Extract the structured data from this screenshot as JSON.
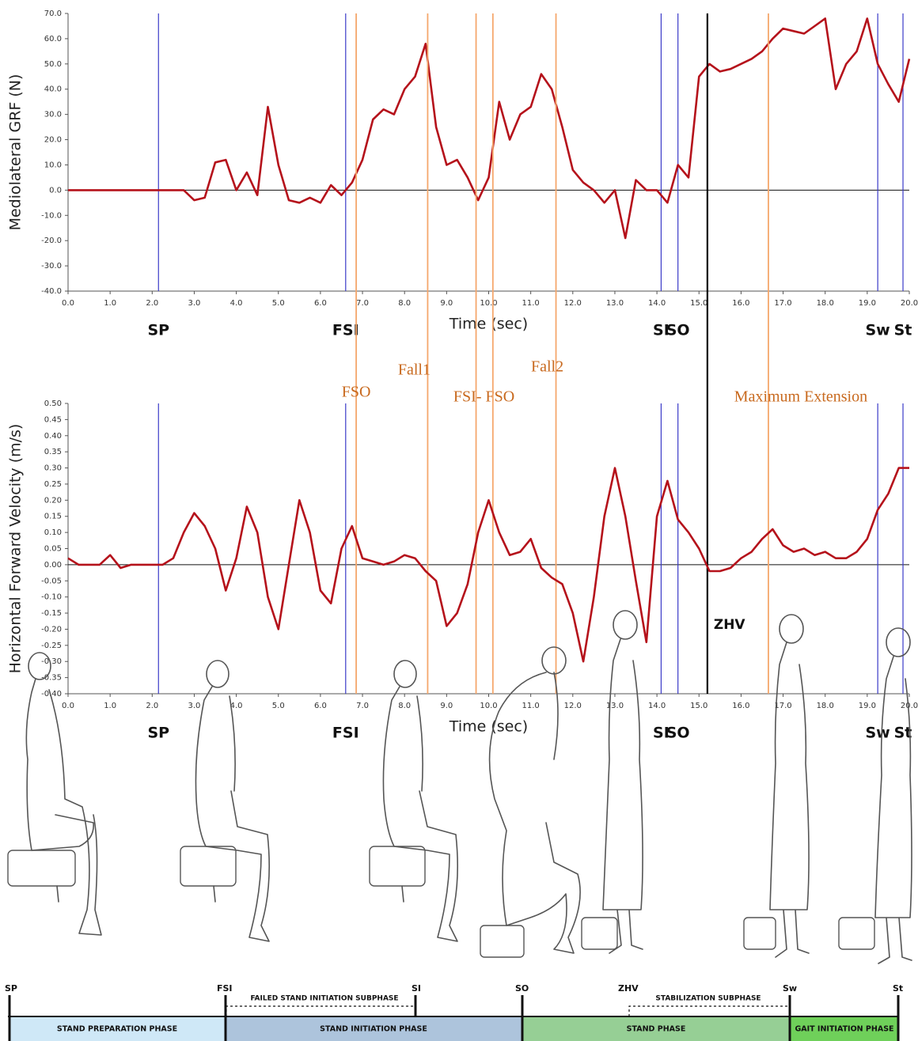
{
  "chart_data": [
    {
      "type": "line",
      "y_label": "Mediolateral GRF (N)",
      "x_label": "Time (sec)",
      "color": "#b5121b",
      "xlim": [
        0,
        20
      ],
      "ylim": [
        -40,
        70
      ],
      "xticks": [
        {
          "value": 0,
          "label": "0.0"
        },
        {
          "value": 1,
          "label": "1.0"
        },
        {
          "value": 2,
          "label": "2.0"
        },
        {
          "value": 3,
          "label": "3.0"
        },
        {
          "value": 4,
          "label": "4.0"
        },
        {
          "value": 5,
          "label": "5.0"
        },
        {
          "value": 6,
          "label": "6.0"
        },
        {
          "value": 7,
          "label": "7.0"
        },
        {
          "value": 8,
          "label": "8.0"
        },
        {
          "value": 9,
          "label": "9.0"
        },
        {
          "value": 10,
          "label": "10.0"
        },
        {
          "value": 11,
          "label": "11.0"
        },
        {
          "value": 12,
          "label": "12.0"
        },
        {
          "value": 13,
          "label": "13.0"
        },
        {
          "value": 14,
          "label": "14.0"
        },
        {
          "value": 15,
          "label": "15.0"
        },
        {
          "value": 16,
          "label": "16.0"
        },
        {
          "value": 17,
          "label": "17.0"
        },
        {
          "value": 18,
          "label": "18.0"
        },
        {
          "value": 19,
          "label": "19.0"
        },
        {
          "value": 20,
          "label": "20.0"
        }
      ],
      "yticks": [
        {
          "value": -40,
          "label": "-40.0"
        },
        {
          "value": -30,
          "label": "-30.0"
        },
        {
          "value": -20,
          "label": "-20.0"
        },
        {
          "value": -10,
          "label": "-10.0"
        },
        {
          "value": 0,
          "label": "0.0"
        },
        {
          "value": 10,
          "label": "10.0"
        },
        {
          "value": 20,
          "label": "20.0"
        },
        {
          "value": 30,
          "label": "30.0"
        },
        {
          "value": 40,
          "label": "40.0"
        },
        {
          "value": 50,
          "label": "50.0"
        },
        {
          "value": 60,
          "label": "60.0"
        },
        {
          "value": 70,
          "label": "70.0"
        }
      ],
      "x": [
        0,
        0.25,
        0.5,
        0.75,
        1,
        1.25,
        1.5,
        1.75,
        2,
        2.25,
        2.5,
        2.75,
        3,
        3.25,
        3.5,
        3.75,
        4,
        4.25,
        4.5,
        4.75,
        5,
        5.25,
        5.5,
        5.75,
        6,
        6.25,
        6.5,
        6.75,
        7,
        7.25,
        7.5,
        7.75,
        8,
        8.25,
        8.5,
        8.75,
        9,
        9.25,
        9.5,
        9.75,
        10,
        10.25,
        10.5,
        10.75,
        11,
        11.25,
        11.5,
        11.75,
        12,
        12.25,
        12.5,
        12.75,
        13,
        13.25,
        13.5,
        13.75,
        14,
        14.25,
        14.5,
        14.75,
        15,
        15.25,
        15.5,
        15.75,
        16,
        16.25,
        16.5,
        16.75,
        17,
        17.25,
        17.5,
        17.75,
        18,
        18.25,
        18.5,
        18.75,
        19,
        19.25,
        19.5,
        19.75,
        20
      ],
      "values": [
        0,
        0,
        0,
        0,
        0,
        0,
        0,
        0,
        0,
        0,
        0,
        0,
        -4,
        -3,
        11,
        12,
        0,
        7,
        -2,
        33,
        10,
        -4,
        -5,
        -3,
        -5,
        2,
        -2,
        3,
        12,
        28,
        32,
        30,
        40,
        45,
        58,
        25,
        10,
        12,
        5,
        -4,
        5,
        35,
        20,
        30,
        33,
        46,
        40,
        25,
        8,
        3,
        0,
        -5,
        0,
        -19,
        4,
        0,
        0,
        -5,
        10,
        5,
        45,
        50,
        47,
        48,
        50,
        52,
        55,
        60,
        64,
        63,
        62,
        65,
        68,
        40,
        50,
        55,
        68,
        50,
        42,
        35,
        52
      ],
      "events": [
        {
          "label": "SP",
          "x": 2.15
        },
        {
          "label": "FSI",
          "x": 6.6
        },
        {
          "label": "SI",
          "x": 14.1
        },
        {
          "label": "SO",
          "x": 14.5
        },
        {
          "label": "Sw",
          "x": 19.25
        },
        {
          "label": "St",
          "x": 19.85
        }
      ]
    },
    {
      "type": "line",
      "y_label": "Horizontal Forward Velocity (m/s)",
      "x_label": "Time (sec)",
      "color": "#b5121b",
      "xlim": [
        0,
        20
      ],
      "ylim": [
        -0.4,
        0.5
      ],
      "xticks": [
        {
          "value": 0,
          "label": "0.0"
        },
        {
          "value": 1,
          "label": "1.0"
        },
        {
          "value": 2,
          "label": "2.0"
        },
        {
          "value": 3,
          "label": "3.0"
        },
        {
          "value": 4,
          "label": "4.0"
        },
        {
          "value": 5,
          "label": "5.0"
        },
        {
          "value": 6,
          "label": "6.0"
        },
        {
          "value": 7,
          "label": "7.0"
        },
        {
          "value": 8,
          "label": "8.0"
        },
        {
          "value": 9,
          "label": "9.0"
        },
        {
          "value": 10,
          "label": "10.0"
        },
        {
          "value": 11,
          "label": "11.0"
        },
        {
          "value": 12,
          "label": "12.0"
        },
        {
          "value": 13,
          "label": "13.0"
        },
        {
          "value": 14,
          "label": "14.0"
        },
        {
          "value": 15,
          "label": "15.0"
        },
        {
          "value": 16,
          "label": "16.0"
        },
        {
          "value": 17,
          "label": "17.0"
        },
        {
          "value": 18,
          "label": "18.0"
        },
        {
          "value": 19,
          "label": "19.0"
        },
        {
          "value": 20,
          "label": "20.0"
        }
      ],
      "yticks": [
        {
          "value": -0.4,
          "label": "-0.40"
        },
        {
          "value": -0.35,
          "label": "-0.35"
        },
        {
          "value": -0.3,
          "label": "-0.30"
        },
        {
          "value": -0.25,
          "label": "-0.25"
        },
        {
          "value": -0.2,
          "label": "-0.20"
        },
        {
          "value": -0.15,
          "label": "-0.15"
        },
        {
          "value": -0.1,
          "label": "-0.10"
        },
        {
          "value": -0.05,
          "label": "-0.05"
        },
        {
          "value": 0,
          "label": "0.00"
        },
        {
          "value": 0.05,
          "label": "0.05"
        },
        {
          "value": 0.1,
          "label": "0.10"
        },
        {
          "value": 0.15,
          "label": "0.15"
        },
        {
          "value": 0.2,
          "label": "0.20"
        },
        {
          "value": 0.25,
          "label": "0.25"
        },
        {
          "value": 0.3,
          "label": "0.30"
        },
        {
          "value": 0.35,
          "label": "0.35"
        },
        {
          "value": 0.4,
          "label": "0.40"
        },
        {
          "value": 0.45,
          "label": "0.45"
        },
        {
          "value": 0.5,
          "label": "0.50"
        }
      ],
      "x": [
        0,
        0.25,
        0.5,
        0.75,
        1,
        1.25,
        1.5,
        1.75,
        2,
        2.25,
        2.5,
        2.75,
        3,
        3.25,
        3.5,
        3.75,
        4,
        4.25,
        4.5,
        4.75,
        5,
        5.25,
        5.5,
        5.75,
        6,
        6.25,
        6.5,
        6.75,
        7,
        7.25,
        7.5,
        7.75,
        8,
        8.25,
        8.5,
        8.75,
        9,
        9.25,
        9.5,
        9.75,
        10,
        10.25,
        10.5,
        10.75,
        11,
        11.25,
        11.5,
        11.75,
        12,
        12.25,
        12.5,
        12.75,
        13,
        13.25,
        13.5,
        13.75,
        14,
        14.25,
        14.5,
        14.75,
        15,
        15.25,
        15.5,
        15.75,
        16,
        16.25,
        16.5,
        16.75,
        17,
        17.25,
        17.5,
        17.75,
        18,
        18.25,
        18.5,
        18.75,
        19,
        19.25,
        19.5,
        19.75,
        20
      ],
      "values": [
        0.02,
        0,
        0,
        0,
        0.03,
        -0.01,
        0,
        0,
        0,
        0,
        0.02,
        0.1,
        0.16,
        0.12,
        0.05,
        -0.08,
        0.02,
        0.18,
        0.1,
        -0.1,
        -0.2,
        0,
        0.2,
        0.1,
        -0.08,
        -0.12,
        0.05,
        0.12,
        0.02,
        0.01,
        0,
        0.01,
        0.03,
        0.02,
        -0.02,
        -0.05,
        -0.19,
        -0.15,
        -0.06,
        0.1,
        0.2,
        0.1,
        0.03,
        0.04,
        0.08,
        -0.01,
        -0.04,
        -0.06,
        -0.15,
        -0.3,
        -0.1,
        0.15,
        0.3,
        0.15,
        -0.05,
        -0.24,
        0.15,
        0.26,
        0.14,
        0.1,
        0.05,
        -0.02,
        -0.02,
        -0.01,
        0.02,
        0.04,
        0.08,
        0.11,
        0.06,
        0.04,
        0.05,
        0.03,
        0.04,
        0.02,
        0.02,
        0.04,
        0.08,
        0.17,
        0.22,
        0.3,
        0.3
      ],
      "events": [
        {
          "label": "SP",
          "x": 2.15
        },
        {
          "label": "FSI",
          "x": 6.6
        },
        {
          "label": "SI",
          "x": 14.1
        },
        {
          "label": "SO",
          "x": 14.5
        },
        {
          "label": "Sw",
          "x": 19.25
        },
        {
          "label": "St",
          "x": 19.85
        }
      ],
      "markers": [
        {
          "x": 6.85,
          "label": "FSO"
        },
        {
          "x": 8.55,
          "label": "Fall1"
        },
        {
          "x": 9.7,
          "label": "FSI- FSO"
        },
        {
          "x": 10.1
        },
        {
          "x": 11.6,
          "label": "Fall2"
        },
        {
          "x": 16.65,
          "label": "Maximum Extension"
        }
      ],
      "reference_line": {
        "x": 15.2,
        "label": "ZHV"
      }
    }
  ],
  "timeline": {
    "markers": [
      "SP",
      "FSI",
      "SI",
      "SO",
      "ZHV",
      "Sw",
      "St"
    ],
    "subphases": [
      "FAILED STAND INITIATION SUBPHASE",
      "STABILIZATION SUBPHASE"
    ],
    "phases": [
      "STAND PREPARATION PHASE",
      "STAND INITIATION PHASE",
      "STAND PHASE",
      "GAIT INITIATION PHASE"
    ]
  }
}
